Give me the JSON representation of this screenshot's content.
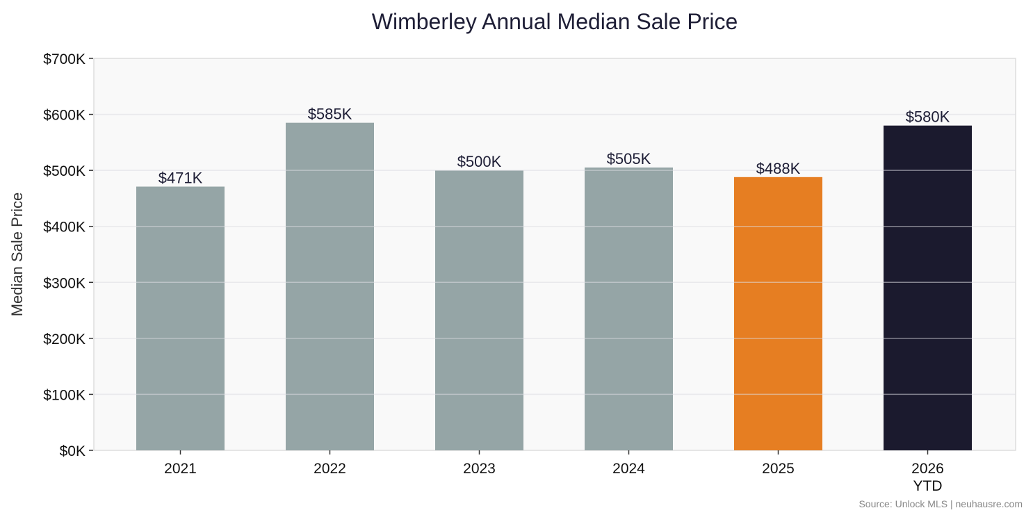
{
  "chart_data": {
    "type": "bar",
    "title": "Wimberley Annual Median Sale Price",
    "xlabel": "",
    "ylabel": "Median Sale Price",
    "categories": [
      "2021",
      "2022",
      "2023",
      "2024",
      "2025",
      "2026\nYTD"
    ],
    "values": [
      471000,
      585000,
      500000,
      505000,
      488000,
      580000
    ],
    "data_labels": [
      "$471K",
      "$585K",
      "$500K",
      "$505K",
      "$488K",
      "$580K"
    ],
    "ylim": [
      0,
      700000
    ],
    "yticks": [
      0,
      100000,
      200000,
      300000,
      400000,
      500000,
      600000,
      700000
    ],
    "ytick_labels": [
      "$0K",
      "$100K",
      "$200K",
      "$300K",
      "$400K",
      "$500K",
      "$600K",
      "$700K"
    ],
    "grid": true,
    "colors": [
      "#95a5a6",
      "#95a5a6",
      "#95a5a6",
      "#95a5a6",
      "#e67e22",
      "#1b1a2e"
    ],
    "plot_background": "#f9f9f9"
  },
  "source": "Source: Unlock MLS | neuhausre.com"
}
